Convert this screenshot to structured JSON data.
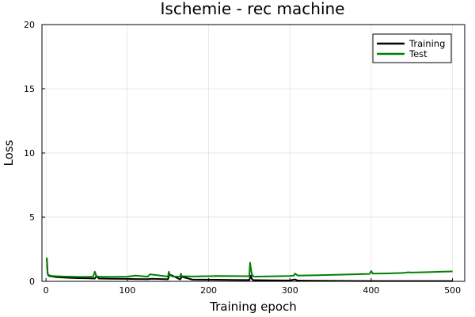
{
  "chart_data": {
    "type": "line",
    "title": "Ischemie - rec machine",
    "xlabel": "Training epoch",
    "ylabel": "Loss",
    "xlim": [
      -5,
      515
    ],
    "ylim": [
      0,
      20
    ],
    "xticks": [
      0,
      100,
      200,
      300,
      400,
      500
    ],
    "yticks": [
      0,
      5,
      10,
      15,
      20
    ],
    "grid": true,
    "legend_position": "top-right",
    "series": [
      {
        "name": "Training",
        "color": "#000000",
        "x": [
          1,
          2,
          3,
          5,
          8,
          12,
          20,
          30,
          40,
          50,
          60,
          62,
          65,
          80,
          100,
          110,
          125,
          130,
          150,
          152,
          165,
          167,
          180,
          200,
          210,
          230,
          250,
          252,
          253,
          255,
          260,
          280,
          300,
          306,
          310,
          330,
          350,
          370,
          400,
          420,
          450,
          480,
          500
        ],
        "y": [
          1.75,
          0.6,
          0.45,
          0.4,
          0.38,
          0.33,
          0.3,
          0.27,
          0.25,
          0.24,
          0.22,
          0.4,
          0.22,
          0.2,
          0.19,
          0.18,
          0.17,
          0.2,
          0.16,
          0.55,
          0.15,
          0.35,
          0.14,
          0.13,
          0.12,
          0.11,
          0.1,
          0.45,
          0.2,
          0.09,
          0.09,
          0.08,
          0.07,
          0.15,
          0.06,
          0.05,
          0.04,
          0.03,
          0.02,
          0.02,
          0.02,
          0.02,
          0.02
        ]
      },
      {
        "name": "Test",
        "color": "#008000",
        "x": [
          1,
          2,
          3,
          5,
          8,
          12,
          20,
          30,
          40,
          50,
          58,
          60,
          62,
          65,
          80,
          100,
          110,
          125,
          128,
          150,
          151,
          152,
          155,
          165,
          166,
          167,
          180,
          200,
          210,
          230,
          250,
          251,
          252,
          253,
          255,
          260,
          280,
          300,
          305,
          306,
          310,
          330,
          350,
          370,
          398,
          400,
          402,
          420,
          440,
          445,
          450,
          470,
          490,
          500
        ],
        "y": [
          1.85,
          0.6,
          0.5,
          0.45,
          0.42,
          0.4,
          0.38,
          0.36,
          0.35,
          0.35,
          0.36,
          0.75,
          0.4,
          0.36,
          0.35,
          0.36,
          0.45,
          0.36,
          0.55,
          0.37,
          0.75,
          0.55,
          0.38,
          0.37,
          0.6,
          0.4,
          0.38,
          0.4,
          0.42,
          0.41,
          0.4,
          1.45,
          1.0,
          0.6,
          0.38,
          0.37,
          0.39,
          0.42,
          0.45,
          0.6,
          0.45,
          0.47,
          0.5,
          0.53,
          0.58,
          0.8,
          0.6,
          0.62,
          0.66,
          0.7,
          0.69,
          0.72,
          0.76,
          0.77
        ]
      }
    ]
  }
}
